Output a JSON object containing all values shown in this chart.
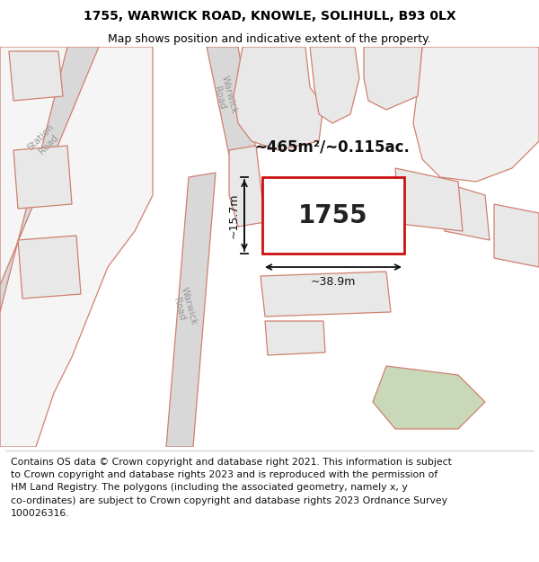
{
  "title_line1": "1755, WARWICK ROAD, KNOWLE, SOLIHULL, B93 0LX",
  "title_line2": "Map shows position and indicative extent of the property.",
  "area_text": "~465m²/~0.115ac.",
  "width_text": "~38.9m",
  "height_text": "~15.7m",
  "plot_label": "1755",
  "footer_text": "Contains OS data © Crown copyright and database right 2021. This information is subject\nto Crown copyright and database rights 2023 and is reproduced with the permission of\nHM Land Registry. The polygons (including the associated geometry, namely x, y\nco-ordinates) are subject to Crown copyright and database rights 2023 Ordnance Survey\n100026316.",
  "bg_color": "#ffffff",
  "map_bg": "#ffffff",
  "poly_fill": "#e8e8e8",
  "road_fill": "#d8d8d8",
  "road_stroke": "#d08070",
  "poly_stroke": "#d08070",
  "highlight_fill": "#ffffff",
  "highlight_stroke": "#cc1111",
  "green_fill": "#c8d8b8",
  "title_fontsize": 10,
  "subtitle_fontsize": 9,
  "label_color": "#888888",
  "footer_fontsize": 7.8
}
